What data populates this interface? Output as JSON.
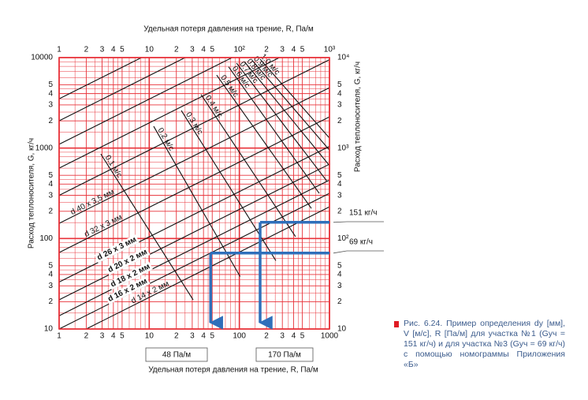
{
  "chart_data": {
    "type": "nomogram",
    "title": "Удельная потеря давления на трение, R, Па/м",
    "xlabel": "Удельная потеря давления на трение, R, Па/м",
    "ylabel": "Расход теплоносителя, G, кг/ч",
    "y2label": "Расход теплоносителя, G, кг/ч",
    "log_x": true,
    "log_y": true,
    "grid": true,
    "grid_color": "#e8333a",
    "xlim": [
      1,
      1000
    ],
    "ylim": [
      10,
      10000
    ],
    "xticks": [
      1,
      2,
      3,
      4,
      5,
      10,
      {
        "value": 20,
        "label": "2"
      },
      {
        "value": 30,
        "label": "3"
      },
      {
        "value": 40,
        "label": "4"
      },
      {
        "value": 50,
        "label": "5"
      },
      100,
      {
        "value": 200,
        "label": "2"
      },
      {
        "value": 300,
        "label": "3"
      },
      {
        "value": 400,
        "label": "4"
      },
      {
        "value": 500,
        "label": "5"
      },
      1000
    ],
    "x2ticks": [
      1,
      2,
      3,
      4,
      5,
      10,
      {
        "value": 20,
        "label": "2"
      },
      {
        "value": 30,
        "label": "3"
      },
      {
        "value": 40,
        "label": "4"
      },
      {
        "value": 50,
        "label": "5"
      },
      {
        "value": 100,
        "label": "10²"
      },
      {
        "value": 200,
        "label": "2"
      },
      {
        "value": 300,
        "label": "3"
      },
      {
        "value": 400,
        "label": "4"
      },
      {
        "value": 500,
        "label": "5"
      },
      {
        "value": 1000,
        "label": "10³"
      }
    ],
    "yticks": [
      10,
      {
        "value": 20,
        "label": "2"
      },
      {
        "value": 30,
        "label": "3"
      },
      {
        "value": 40,
        "label": "4"
      },
      {
        "value": 50,
        "label": "5"
      },
      100,
      {
        "value": 200,
        "label": "2"
      },
      {
        "value": 300,
        "label": "3"
      },
      {
        "value": 400,
        "label": "4"
      },
      {
        "value": 500,
        "label": "5"
      },
      1000,
      {
        "value": 2000,
        "label": "2"
      },
      {
        "value": 3000,
        "label": "3"
      },
      {
        "value": 4000,
        "label": "4"
      },
      {
        "value": 5000,
        "label": "5"
      },
      10000
    ],
    "y2ticks": [
      10,
      {
        "value": 20,
        "label": "2"
      },
      {
        "value": 30,
        "label": "3"
      },
      {
        "value": 40,
        "label": "4"
      },
      {
        "value": 50,
        "label": "5"
      },
      {
        "value": 100,
        "label": "10²"
      },
      {
        "value": 200,
        "label": "2"
      },
      {
        "value": 300,
        "label": "3"
      },
      {
        "value": 400,
        "label": "4"
      },
      {
        "value": 500,
        "label": "5"
      },
      {
        "value": 1000,
        "label": "10³"
      },
      {
        "value": 2000,
        "label": "2"
      },
      {
        "value": 3000,
        "label": "3"
      },
      {
        "value": 4000,
        "label": "4"
      },
      {
        "value": 5000,
        "label": "5"
      },
      {
        "value": 10000,
        "label": "10⁴"
      }
    ],
    "xminor": [
      1.5,
      2.5,
      3.5,
      4.5,
      6,
      7,
      8,
      9,
      15,
      25,
      35,
      45,
      60,
      70,
      80,
      90,
      150,
      250,
      350,
      450,
      600,
      700,
      800,
      900
    ],
    "yminor": [
      15,
      25,
      35,
      45,
      60,
      70,
      80,
      90,
      150,
      250,
      350,
      450,
      600,
      700,
      800,
      900,
      1500,
      2500,
      3500,
      4500,
      6000,
      7000,
      8000,
      9000
    ],
    "diameter_lines": [
      {
        "name": "d 14 x 2 мм",
        "x": [
          2,
          1000
        ],
        "y": [
          10,
          224
        ]
      },
      {
        "name": "d 16 x 2 мм",
        "x": [
          1,
          1000
        ],
        "y": [
          10,
          316
        ]
      },
      {
        "name": "d 18 x 2 мм",
        "x": [
          1,
          1000
        ],
        "y": [
          14,
          443
        ]
      },
      {
        "name": "d 20 x 2 мм",
        "x": [
          1,
          1000
        ],
        "y": [
          21,
          664
        ]
      },
      {
        "name": "d 26 x 3 мм",
        "x": [
          1,
          1000
        ],
        "y": [
          33,
          1044
        ]
      },
      {
        "name": "d 32 x 3 мм",
        "x": [
          1,
          1000
        ],
        "y": [
          70,
          2214
        ]
      },
      {
        "name": "d 40 x 3,5 мм",
        "x": [
          1,
          1000
        ],
        "y": [
          147,
          4649
        ]
      },
      {
        "x": [
          1,
          1000
        ],
        "y": [
          300,
          9487
        ]
      },
      {
        "x": [
          1,
          278
        ],
        "y": [
          600,
          10000
        ]
      },
      {
        "x": [
          1,
          83
        ],
        "y": [
          1100,
          10000
        ]
      },
      {
        "x": [
          1,
          25
        ],
        "y": [
          2000,
          10000
        ]
      },
      {
        "x": [
          1,
          8.2
        ],
        "y": [
          3500,
          10000
        ]
      }
    ],
    "velocity_lines": [
      {
        "name": "0.1 м/с",
        "x": [
          2.9,
          30.7
        ],
        "y": [
          861,
          21
        ]
      },
      {
        "name": "0.2 м/с",
        "x": [
          11.2,
          102
        ],
        "y": [
          1740,
          38
        ]
      },
      {
        "name": "0.3 м/с",
        "x": [
          22.7,
          254
        ],
        "y": [
          2600,
          57
        ]
      },
      {
        "name": "0.4 м/с",
        "x": [
          37.6,
          420
        ],
        "y": [
          3900,
          105
        ]
      },
      {
        "name": "0.5 м/с",
        "x": [
          56,
          630
        ],
        "y": [
          6400,
          215
        ]
      },
      {
        "name": "0.6 м/с",
        "x": [
          76,
          770
        ],
        "y": [
          7900,
          316
        ]
      },
      {
        "name": "0.7 м/с",
        "x": [
          93,
          944
        ],
        "y": [
          8700,
          427
        ]
      },
      {
        "name": "0.8 м/с",
        "x": [
          114,
          1000
        ],
        "y": [
          9000,
          640
        ]
      },
      {
        "name": "0.9 м/с",
        "x": [
          139,
          1000
        ],
        "y": [
          9300,
          950
        ]
      },
      {
        "name": "1.0 м/с",
        "x": [
          170,
          1000
        ],
        "y": [
          9600,
          1290
        ]
      }
    ],
    "examples": [
      {
        "G": 151,
        "label": "151 кг/ч",
        "R": 170,
        "R_label": "170 Па/м"
      },
      {
        "G": 69,
        "label": "69 кг/ч",
        "R": 48,
        "R_label": "48 Па/м"
      }
    ],
    "caption": "Рис. 6.24. Пример определения dy [мм], V [м/с], R [Па/м] для участка №1 (Gуч = 151 кг/ч) и для участка №3 (Gуч = 69 кг/ч) с помощью номограммы Приложения «Б»"
  }
}
